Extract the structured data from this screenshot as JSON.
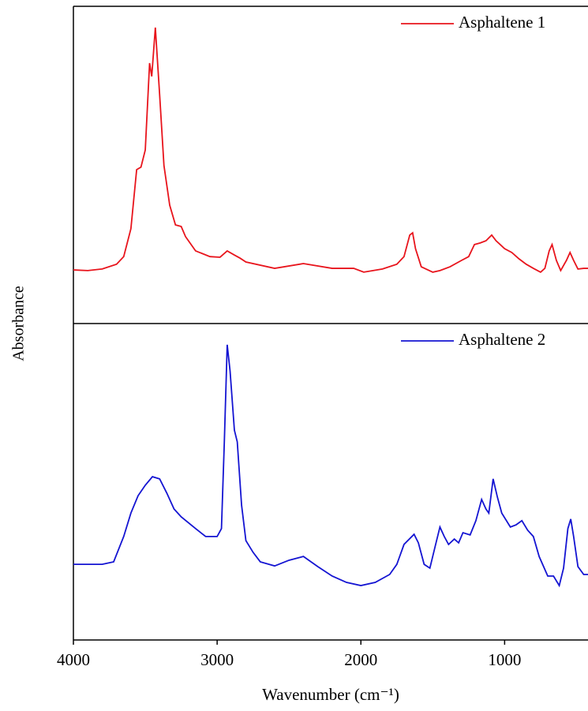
{
  "chart_data": [
    {
      "type": "line",
      "xlim": [
        4000,
        420
      ],
      "ylim": [
        0,
        100
      ],
      "legend": "upper right",
      "series": [
        {
          "name": "Asphaltene 1",
          "color": "#e8141c",
          "x": [
            4000,
            3900,
            3800,
            3700,
            3650,
            3600,
            3560,
            3530,
            3500,
            3470,
            3455,
            3430,
            3400,
            3370,
            3330,
            3290,
            3250,
            3220,
            3150,
            3050,
            2980,
            2930,
            2880,
            2840,
            2800,
            2600,
            2400,
            2200,
            2050,
            1980,
            1850,
            1750,
            1700,
            1660,
            1640,
            1620,
            1580,
            1500,
            1450,
            1380,
            1300,
            1250,
            1210,
            1170,
            1130,
            1090,
            1060,
            1000,
            950,
            900,
            850,
            800,
            750,
            720,
            690,
            670,
            640,
            610,
            570,
            545,
            520,
            490,
            450,
            420
          ],
          "values": [
            16.9,
            16.7,
            17.2,
            18.7,
            21.1,
            29.9,
            48.5,
            49.3,
            54.7,
            82.1,
            77.9,
            93.3,
            72.1,
            49.8,
            37.3,
            31.1,
            30.6,
            27.4,
            22.9,
            21.1,
            20.9,
            22.9,
            21.6,
            20.6,
            19.4,
            17.4,
            18.9,
            17.4,
            17.4,
            16.2,
            17.2,
            18.7,
            21.1,
            27.9,
            28.6,
            23.6,
            17.9,
            16.2,
            16.7,
            17.9,
            19.9,
            21.1,
            24.9,
            25.4,
            26.1,
            27.9,
            26.1,
            23.6,
            22.4,
            20.4,
            18.7,
            17.4,
            16.2,
            17.4,
            22.9,
            24.9,
            19.9,
            16.7,
            19.9,
            22.4,
            19.9,
            17.2,
            17.4,
            17.4
          ]
        }
      ]
    },
    {
      "type": "line",
      "xlim": [
        4000,
        420
      ],
      "ylim": [
        0,
        100
      ],
      "legend": "upper right",
      "xlabel": "Wavenumber (cm⁻¹)",
      "ylabel": "Absorbance",
      "xticks": [
        4000,
        3000,
        2000,
        1000
      ],
      "series": [
        {
          "name": "Asphaltene 2",
          "color": "#1414d2",
          "x": [
            4000,
            3800,
            3720,
            3650,
            3600,
            3550,
            3500,
            3450,
            3400,
            3350,
            3300,
            3250,
            3150,
            3080,
            3000,
            2970,
            2950,
            2930,
            2910,
            2880,
            2860,
            2830,
            2800,
            2750,
            2700,
            2600,
            2500,
            2400,
            2300,
            2200,
            2100,
            2000,
            1900,
            1800,
            1750,
            1700,
            1630,
            1600,
            1560,
            1520,
            1480,
            1450,
            1420,
            1390,
            1350,
            1320,
            1290,
            1240,
            1200,
            1160,
            1130,
            1110,
            1080,
            1050,
            1020,
            960,
            920,
            880,
            840,
            800,
            760,
            700,
            660,
            620,
            590,
            560,
            540,
            520,
            490,
            450,
            420
          ],
          "values": [
            23.9,
            23.9,
            24.7,
            32.7,
            40.1,
            45.6,
            48.9,
            51.6,
            50.9,
            46.4,
            41.4,
            38.9,
            35.2,
            32.7,
            32.7,
            35.2,
            62.6,
            93.3,
            85.0,
            66.3,
            62.6,
            42.6,
            31.4,
            27.7,
            24.7,
            23.4,
            25.2,
            26.4,
            23.2,
            20.2,
            18.2,
            17.2,
            18.2,
            20.7,
            23.9,
            30.2,
            33.4,
            30.7,
            23.9,
            22.7,
            30.2,
            35.7,
            32.7,
            30.2,
            31.9,
            30.7,
            33.9,
            33.2,
            37.7,
            44.4,
            41.4,
            40.1,
            50.9,
            45.1,
            40.1,
            35.7,
            36.4,
            37.7,
            34.7,
            32.7,
            26.4,
            20.2,
            20.2,
            17.2,
            22.7,
            35.2,
            38.2,
            32.7,
            23.2,
            20.7,
            20.7
          ]
        }
      ]
    }
  ]
}
